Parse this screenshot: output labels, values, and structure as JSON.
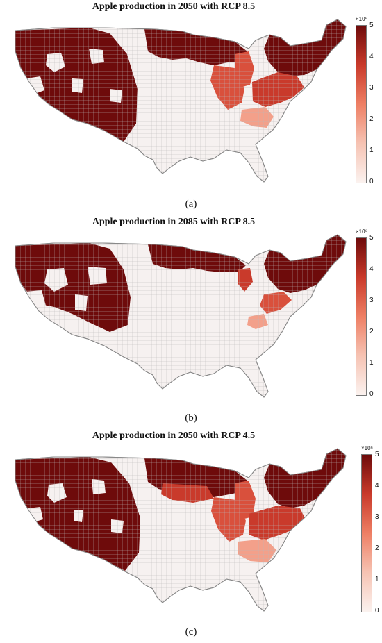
{
  "panels": [
    {
      "title": "Apple production in 2050 with RCP 8.5",
      "caption": "(a)"
    },
    {
      "title": "Apple production in 2085 with RCP 8.5",
      "caption": "(b)"
    },
    {
      "title": "Apple production in 2050 with RCP 4.5",
      "caption": "(c)"
    }
  ],
  "colorbar": {
    "multiplier": "×10⁶",
    "ticks": [
      "5",
      "4",
      "3",
      "2",
      "1",
      "0"
    ],
    "range": [
      0,
      5000000
    ],
    "colors": [
      "#fbf2ef",
      "#f6c3b3",
      "#ee7f64",
      "#c93a2b",
      "#6e0b0b"
    ]
  },
  "colors": {
    "high": "#6e0b0b",
    "mid": "#d9503c",
    "low": "#f3a08a",
    "none": "#f6f1f0",
    "border": "#9a9a9a"
  }
}
